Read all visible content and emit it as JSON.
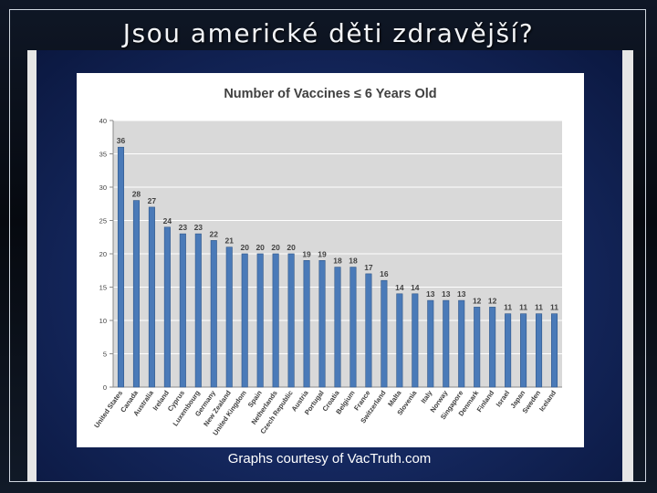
{
  "slide": {
    "title": "Jsou americké děti zdravější?",
    "credit": "Graphs courtesy of VacTruth.com"
  },
  "colors": {
    "bar": "#4a7ab8",
    "bar_edge": "#2f5689",
    "plot_bg": "#d9d9d9",
    "grid": "#ffffff"
  },
  "chart_data": {
    "type": "bar",
    "title": "Number of Vaccines ≤ 6 Years Old",
    "xlabel": "",
    "ylabel": "",
    "ylim": [
      0,
      40
    ],
    "yticks": [
      0,
      5,
      10,
      15,
      20,
      25,
      30,
      35,
      40
    ],
    "grid": true,
    "legend": false,
    "categories": [
      "United States",
      "Canada",
      "Australia",
      "Ireland",
      "Cyprus",
      "Luxembourg",
      "Germany",
      "New Zealand",
      "United Kingdom",
      "Spain",
      "Netherlands",
      "Czech Republic",
      "Austria",
      "Portugal",
      "Croatia",
      "Belgium",
      "France",
      "Switzerland",
      "Malta",
      "Slovenia",
      "Italy",
      "Norway",
      "Singapore",
      "Denmark",
      "Finland",
      "Israel",
      "Japan",
      "Sweden",
      "Iceland"
    ],
    "values": [
      36,
      28,
      27,
      24,
      23,
      23,
      22,
      21,
      20,
      20,
      20,
      20,
      19,
      19,
      18,
      18,
      17,
      16,
      14,
      14,
      13,
      13,
      13,
      12,
      12,
      11,
      11,
      11,
      11
    ]
  }
}
